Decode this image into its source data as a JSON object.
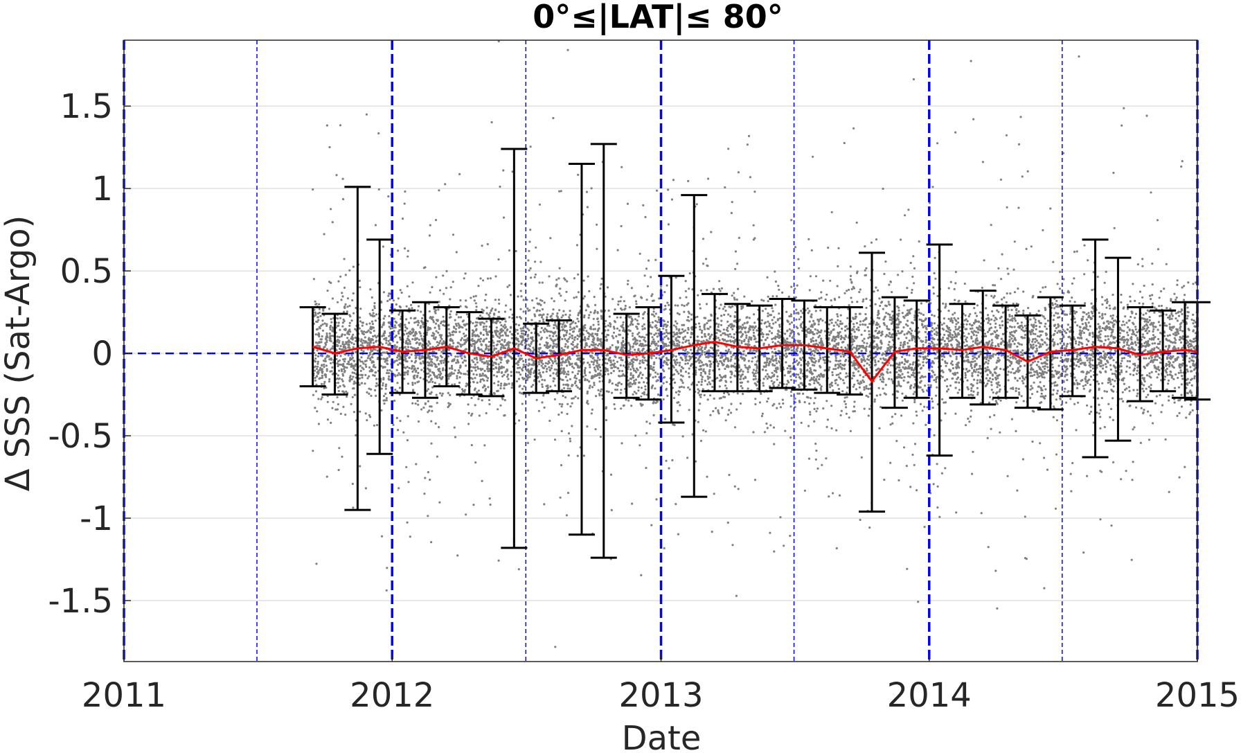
{
  "chart_data": {
    "type": "scatter",
    "title": "0°≤|LAT|≤ 80°",
    "xlabel": "Date",
    "ylabel": "Δ SSS (Sat-Argo)",
    "xlim": [
      "2011-01-01",
      "2015-01-01"
    ],
    "ylim": [
      -1.87,
      1.9
    ],
    "x_ticks": [
      "2011",
      "2012",
      "2013",
      "2014",
      "2015"
    ],
    "y_ticks": [
      1.5,
      1,
      0.5,
      0,
      -0.5,
      -1,
      -1.5
    ],
    "y_tick_labels": [
      "1.5",
      "1",
      "0.5",
      "0",
      "-0.5",
      "-1",
      "-1.5"
    ],
    "grid": "horizontal",
    "colors": {
      "scatter": "#808080",
      "mean_line": "#ff0000",
      "error_bars": "#000000",
      "vertical_lines": "#0000ff",
      "zero_line": "#0000ff",
      "grid": "#e0e0e0"
    },
    "vertical_lines": [
      {
        "date": "2011-01-01",
        "style": "thick-dashed"
      },
      {
        "date": "2011-07-01",
        "style": "thin-dashed"
      },
      {
        "date": "2012-01-01",
        "style": "thick-dashed"
      },
      {
        "date": "2012-07-01",
        "style": "thin-dashed"
      },
      {
        "date": "2013-01-01",
        "style": "thick-dashed"
      },
      {
        "date": "2013-07-01",
        "style": "thin-dashed"
      },
      {
        "date": "2014-01-01",
        "style": "thick-dashed"
      },
      {
        "date": "2014-07-01",
        "style": "thin-dashed"
      },
      {
        "date": "2015-01-01",
        "style": "thick-dashed"
      }
    ],
    "scatter_extent": {
      "x_start": "2011-09-15",
      "x_end": "2015-01-01",
      "core_sd": 0.16
    },
    "series": [
      {
        "name": "monthly mean with error bars",
        "points": [
          {
            "date": "2011-09-15",
            "y": 0.04,
            "low": -0.2,
            "high": 0.28
          },
          {
            "date": "2011-10-15",
            "y": 0.0,
            "low": -0.25,
            "high": 0.24
          },
          {
            "date": "2011-11-15",
            "y": 0.03,
            "low": -0.95,
            "high": 1.01
          },
          {
            "date": "2011-12-15",
            "y": 0.04,
            "low": -0.61,
            "high": 0.69
          },
          {
            "date": "2012-01-15",
            "y": 0.01,
            "low": -0.24,
            "high": 0.26
          },
          {
            "date": "2012-02-15",
            "y": 0.02,
            "low": -0.27,
            "high": 0.31
          },
          {
            "date": "2012-03-15",
            "y": 0.04,
            "low": -0.2,
            "high": 0.28
          },
          {
            "date": "2012-04-15",
            "y": 0.0,
            "low": -0.25,
            "high": 0.25
          },
          {
            "date": "2012-05-15",
            "y": -0.02,
            "low": -0.26,
            "high": 0.21
          },
          {
            "date": "2012-06-15",
            "y": 0.03,
            "low": -1.18,
            "high": 1.24
          },
          {
            "date": "2012-07-15",
            "y": -0.03,
            "low": -0.24,
            "high": 0.18
          },
          {
            "date": "2012-08-15",
            "y": -0.01,
            "low": -0.23,
            "high": 0.2
          },
          {
            "date": "2012-09-15",
            "y": 0.02,
            "low": -1.1,
            "high": 1.15
          },
          {
            "date": "2012-10-15",
            "y": 0.02,
            "low": -1.24,
            "high": 1.27
          },
          {
            "date": "2012-11-15",
            "y": -0.01,
            "low": -0.27,
            "high": 0.24
          },
          {
            "date": "2012-12-15",
            "y": 0.0,
            "low": -0.28,
            "high": 0.28
          },
          {
            "date": "2013-01-15",
            "y": 0.02,
            "low": -0.42,
            "high": 0.47
          },
          {
            "date": "2013-02-15",
            "y": 0.05,
            "low": -0.87,
            "high": 0.96
          },
          {
            "date": "2013-03-15",
            "y": 0.07,
            "low": -0.23,
            "high": 0.36
          },
          {
            "date": "2013-04-15",
            "y": 0.04,
            "low": -0.23,
            "high": 0.3
          },
          {
            "date": "2013-05-15",
            "y": 0.03,
            "low": -0.23,
            "high": 0.29
          },
          {
            "date": "2013-06-15",
            "y": 0.05,
            "low": -0.21,
            "high": 0.33
          },
          {
            "date": "2013-07-15",
            "y": 0.05,
            "low": -0.22,
            "high": 0.32
          },
          {
            "date": "2013-08-15",
            "y": 0.03,
            "low": -0.24,
            "high": 0.28
          },
          {
            "date": "2013-09-15",
            "y": 0.01,
            "low": -0.25,
            "high": 0.28
          },
          {
            "date": "2013-10-15",
            "y": -0.17,
            "low": -0.96,
            "high": 0.61
          },
          {
            "date": "2013-11-15",
            "y": 0.01,
            "low": -0.33,
            "high": 0.34
          },
          {
            "date": "2013-12-15",
            "y": 0.03,
            "low": -0.27,
            "high": 0.32
          },
          {
            "date": "2014-01-15",
            "y": 0.03,
            "low": -0.62,
            "high": 0.66
          },
          {
            "date": "2014-02-15",
            "y": 0.02,
            "low": -0.27,
            "high": 0.3
          },
          {
            "date": "2014-03-15",
            "y": 0.04,
            "low": -0.31,
            "high": 0.38
          },
          {
            "date": "2014-04-15",
            "y": 0.02,
            "low": -0.27,
            "high": 0.29
          },
          {
            "date": "2014-05-15",
            "y": -0.05,
            "low": -0.33,
            "high": 0.23
          },
          {
            "date": "2014-06-15",
            "y": 0.01,
            "low": -0.34,
            "high": 0.34
          },
          {
            "date": "2014-07-15",
            "y": 0.02,
            "low": -0.26,
            "high": 0.29
          },
          {
            "date": "2014-08-15",
            "y": 0.04,
            "low": -0.63,
            "high": 0.69
          },
          {
            "date": "2014-09-15",
            "y": 0.03,
            "low": -0.53,
            "high": 0.58
          },
          {
            "date": "2014-10-15",
            "y": -0.01,
            "low": -0.29,
            "high": 0.28
          },
          {
            "date": "2014-11-15",
            "y": 0.01,
            "low": -0.23,
            "high": 0.26
          },
          {
            "date": "2014-12-15",
            "y": 0.02,
            "low": -0.27,
            "high": 0.31
          },
          {
            "date": "2015-01-01",
            "y": 0.01,
            "low": -0.28,
            "high": 0.31
          }
        ]
      }
    ]
  }
}
